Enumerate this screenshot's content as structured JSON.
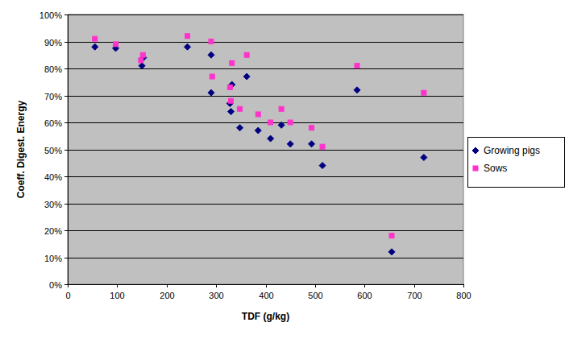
{
  "chart_data": {
    "type": "scatter",
    "x_label": "TDF (g/kg)",
    "y_label": "Coeff. Digest. Energy",
    "xlim": [
      0,
      800
    ],
    "xticks": [
      0,
      100,
      200,
      300,
      400,
      500,
      600,
      700,
      800
    ],
    "ylim": [
      0,
      100
    ],
    "yticks": [
      {
        "value": 0,
        "label": "0%"
      },
      {
        "value": 10,
        "label": "10%"
      },
      {
        "value": 20,
        "label": "20%"
      },
      {
        "value": 30,
        "label": "30%"
      },
      {
        "value": 40,
        "label": "40%"
      },
      {
        "value": 50,
        "label": "50%"
      },
      {
        "value": 60,
        "label": "60%"
      },
      {
        "value": 70,
        "label": "70%"
      },
      {
        "value": 80,
        "label": "80%"
      },
      {
        "value": 90,
        "label": "90%"
      },
      {
        "value": 100,
        "label": "100%"
      }
    ],
    "grid": true,
    "legend": "right",
    "series": [
      {
        "name": "Growing pigs",
        "color": "#000080",
        "marker": "diamond",
        "x": [
          55,
          97,
          150,
          153,
          242,
          290,
          290,
          328,
          330,
          332,
          348,
          362,
          385,
          410,
          432,
          450,
          493,
          515,
          585,
          655,
          720
        ],
        "values": [
          88,
          87.5,
          81,
          84,
          88,
          85,
          71,
          67,
          64,
          74,
          58,
          77,
          57,
          54,
          59,
          52,
          52,
          44,
          72,
          12,
          47
        ]
      },
      {
        "name": "Sows",
        "color": "#ff33cc",
        "marker": "square",
        "x": [
          55,
          97,
          148,
          152,
          242,
          290,
          292,
          328,
          330,
          332,
          348,
          362,
          385,
          410,
          432,
          450,
          493,
          515,
          585,
          655,
          720
        ],
        "values": [
          91,
          89,
          83,
          85,
          92,
          90,
          77,
          73,
          68,
          82,
          65,
          85,
          63,
          60,
          65,
          60,
          58,
          51,
          81,
          18,
          71
        ]
      }
    ]
  }
}
